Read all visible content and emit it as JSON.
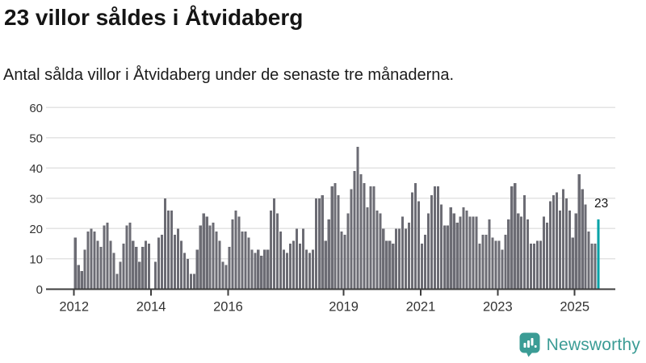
{
  "header": {
    "title": "23 villor såldes i Åtvidaberg",
    "subtitle": "Antal sålda villor i Åtvidaberg under de senaste tre månaderna."
  },
  "annotation": {
    "last_value_label": "23"
  },
  "footer": {
    "brand": "Newsworthy",
    "logo_icon": "bar-chart-pin-icon"
  },
  "colors": {
    "bar": "#6c6c74",
    "highlight": "#00a2a7",
    "brand": "#3b9c95",
    "grid": "#e3e3e3",
    "axis": "#3d3d3d",
    "tick_label": "#333333",
    "annotation_text": "#151515"
  },
  "chart_data": {
    "type": "bar",
    "title": "23 villor såldes i Åtvidaberg",
    "subtitle": "Antal sålda villor i Åtvidaberg under de senaste tre månaderna.",
    "x_start": "2012-01",
    "x_end": "2025-08",
    "x_unit": "month",
    "ylim": [
      0,
      60
    ],
    "y_ticks": [
      0,
      10,
      20,
      30,
      40,
      50,
      60
    ],
    "grid": "horizontal",
    "x_tick_labels": [
      "2012",
      "2014",
      "2016",
      "2019",
      "2021",
      "2023",
      "2025"
    ],
    "x_tick_month_indices": [
      0,
      24,
      48,
      84,
      108,
      132,
      156
    ],
    "highlight_index": 163,
    "highlight_value": 23,
    "values": [
      17,
      8,
      6,
      13,
      19,
      20,
      19,
      16,
      14,
      21,
      22,
      16,
      12,
      5,
      9,
      15,
      21,
      22,
      16,
      14,
      9,
      14,
      16,
      15,
      0,
      9,
      17,
      18,
      30,
      26,
      26,
      18,
      20,
      16,
      12,
      10,
      5,
      5,
      13,
      21,
      25,
      24,
      21,
      22,
      19,
      16,
      9,
      8,
      14,
      23,
      26,
      24,
      19,
      19,
      17,
      13,
      12,
      13,
      11,
      13,
      13,
      26,
      30,
      25,
      19,
      13,
      12,
      15,
      16,
      20,
      15,
      20,
      13,
      12,
      13,
      30,
      30,
      31,
      16,
      23,
      34,
      35,
      31,
      19,
      18,
      25,
      33,
      39,
      47,
      38,
      35,
      27,
      34,
      34,
      26,
      25,
      20,
      16,
      16,
      15,
      20,
      20,
      24,
      20,
      22,
      32,
      35,
      29,
      15,
      18,
      25,
      31,
      34,
      34,
      28,
      21,
      21,
      27,
      25,
      22,
      24,
      27,
      26,
      24,
      24,
      24,
      15,
      18,
      18,
      23,
      17,
      16,
      16,
      13,
      18,
      23,
      34,
      35,
      25,
      24,
      31,
      23,
      15,
      15,
      16,
      16,
      24,
      22,
      29,
      31,
      32,
      26,
      33,
      30,
      26,
      17,
      25,
      38,
      33,
      28,
      19,
      15,
      15,
      23
    ]
  }
}
